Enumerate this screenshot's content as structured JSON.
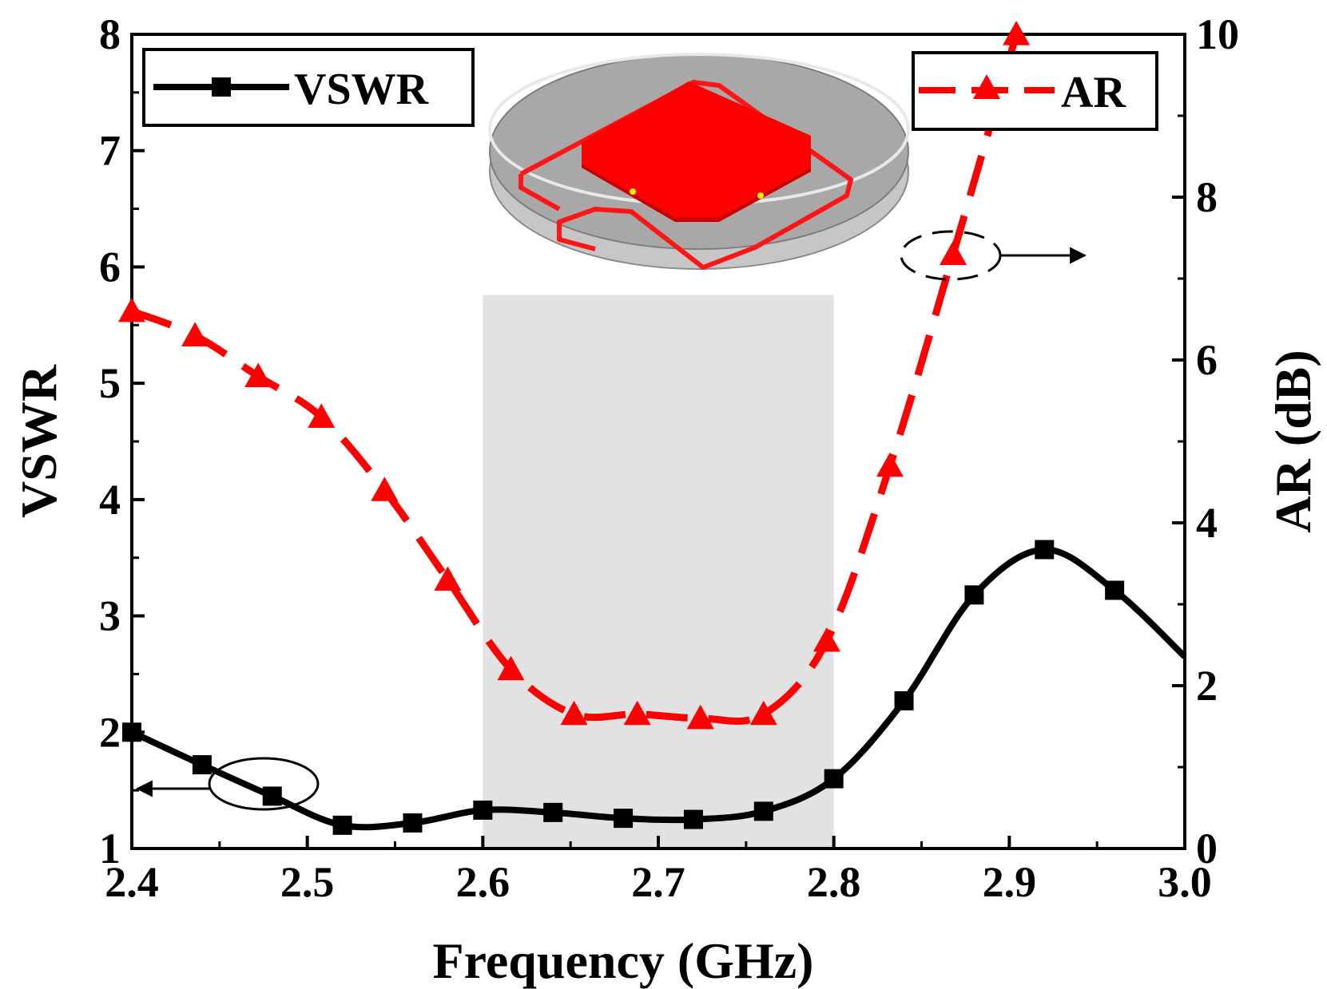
{
  "chart_data": {
    "type": "line",
    "title": "",
    "xlabel": "Frequency (GHz)",
    "ylabel": "VSWR",
    "y2label": "AR (dB)",
    "xlim": [
      2.4,
      3.0
    ],
    "ylim": [
      1,
      8
    ],
    "y2lim": [
      0,
      10
    ],
    "xticks": [
      "2.4",
      "2.5",
      "2.6",
      "2.7",
      "2.8",
      "2.9",
      "3.0"
    ],
    "yticks": [
      "1",
      "2",
      "3",
      "4",
      "5",
      "6",
      "7",
      "8"
    ],
    "y2ticks": [
      "0",
      "2",
      "4",
      "6",
      "8",
      "10"
    ],
    "shaded_band": {
      "x_start": 2.6,
      "x_end": 2.8,
      "y2_top": 6.8,
      "color": "#e2e2e2"
    },
    "series": [
      {
        "name": "VSWR",
        "axis": "left",
        "color": "#000000",
        "marker": "square",
        "line_style": "solid",
        "x": [
          2.4,
          2.44,
          2.48,
          2.52,
          2.56,
          2.6,
          2.64,
          2.68,
          2.72,
          2.76,
          2.8,
          2.84,
          2.88,
          2.92,
          2.96,
          3.0
        ],
        "values": [
          2.0,
          1.72,
          1.45,
          1.2,
          1.22,
          1.33,
          1.31,
          1.26,
          1.25,
          1.32,
          1.6,
          2.27,
          3.18,
          3.57,
          3.22,
          2.65
        ]
      },
      {
        "name": "AR",
        "axis": "right",
        "color": "#ff0000",
        "marker": "triangle",
        "line_style": "dashed",
        "x": [
          2.4,
          2.436,
          2.472,
          2.508,
          2.544,
          2.58,
          2.616,
          2.652,
          2.688,
          2.724,
          2.76,
          2.796,
          2.832,
          2.868,
          2.904
        ],
        "values": [
          6.6,
          6.3,
          5.8,
          5.3,
          4.4,
          3.3,
          2.2,
          1.65,
          1.65,
          1.6,
          1.65,
          2.55,
          4.7,
          7.3,
          10.0
        ]
      }
    ],
    "legend": [
      {
        "label": "VSWR",
        "position": "top-left"
      },
      {
        "label": "AR",
        "position": "top-right"
      }
    ],
    "annotations": [
      {
        "type": "ellipse-arrow",
        "series": "VSWR",
        "points_to": "left-axis"
      },
      {
        "type": "ellipse-arrow",
        "series": "AR",
        "points_to": "right-axis"
      },
      {
        "type": "inset-image",
        "depicts": "antenna-3d-model"
      }
    ]
  }
}
